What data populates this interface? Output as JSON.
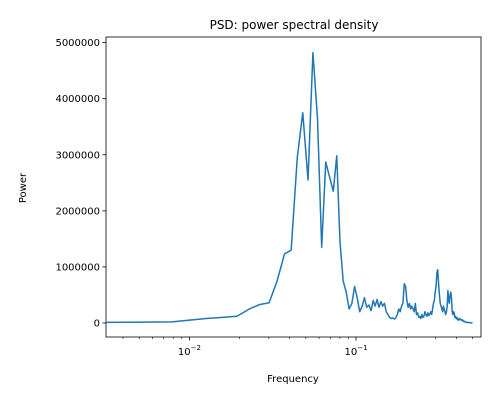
{
  "chart_data": {
    "type": "line",
    "title": "PSD: power spectral density",
    "xlabel": "Frequency",
    "ylabel": "Power",
    "x_scale": "log",
    "xlim": [
      0.00316,
      0.562
    ],
    "ylim": [
      -250000,
      5100000
    ],
    "grid": false,
    "y_ticks": [
      {
        "value": 0,
        "label": "0"
      },
      {
        "value": 1000000,
        "label": "1000000"
      },
      {
        "value": 2000000,
        "label": "2000000"
      },
      {
        "value": 3000000,
        "label": "3000000"
      },
      {
        "value": 4000000,
        "label": "4000000"
      },
      {
        "value": 5000000,
        "label": "5000000"
      }
    ],
    "x_ticks": [
      {
        "value": 0.01,
        "base": "10",
        "exp": "−2"
      },
      {
        "value": 0.1,
        "base": "10",
        "exp": "−1"
      }
    ],
    "x_minor_ticks": [
      0.004,
      0.005,
      0.006,
      0.007,
      0.008,
      0.009,
      0.02,
      0.03,
      0.04,
      0.05,
      0.06,
      0.07,
      0.08,
      0.09,
      0.2,
      0.3,
      0.4,
      0.5
    ],
    "series": [
      {
        "color": "#1f77b4",
        "points": [
          [
            0.00316,
            10000
          ],
          [
            0.00788,
            20000
          ],
          [
            0.0126,
            80000
          ],
          [
            0.0158,
            100000
          ],
          [
            0.0193,
            120000
          ],
          [
            0.0229,
            250000
          ],
          [
            0.0265,
            330000
          ],
          [
            0.0301,
            360000
          ],
          [
            0.0336,
            750000
          ],
          [
            0.0372,
            1230000
          ],
          [
            0.0408,
            1300000
          ],
          [
            0.0444,
            2950000
          ],
          [
            0.0479,
            3750000
          ],
          [
            0.0515,
            2550000
          ],
          [
            0.0551,
            4820000
          ],
          [
            0.0587,
            3650000
          ],
          [
            0.0622,
            1350000
          ],
          [
            0.0658,
            2870000
          ],
          [
            0.0694,
            2600000
          ],
          [
            0.073,
            2350000
          ],
          [
            0.0766,
            2980000
          ],
          [
            0.0801,
            1450000
          ],
          [
            0.0837,
            750000
          ],
          [
            0.0873,
            550000
          ],
          [
            0.0909,
            250000
          ],
          [
            0.0944,
            350000
          ],
          [
            0.098,
            650000
          ],
          [
            0.1016,
            450000
          ],
          [
            0.1052,
            200000
          ],
          [
            0.1088,
            300000
          ],
          [
            0.1123,
            450000
          ],
          [
            0.1159,
            280000
          ],
          [
            0.1195,
            320000
          ],
          [
            0.1231,
            220000
          ],
          [
            0.1267,
            400000
          ],
          [
            0.1302,
            300000
          ],
          [
            0.1338,
            420000
          ],
          [
            0.1374,
            280000
          ],
          [
            0.141,
            380000
          ],
          [
            0.1446,
            300000
          ],
          [
            0.1481,
            350000
          ],
          [
            0.1517,
            200000
          ],
          [
            0.1553,
            150000
          ],
          [
            0.1589,
            100000
          ],
          [
            0.1625,
            80000
          ],
          [
            0.166,
            90000
          ],
          [
            0.1696,
            70000
          ],
          [
            0.1732,
            90000
          ],
          [
            0.1768,
            150000
          ],
          [
            0.1804,
            250000
          ],
          [
            0.1839,
            200000
          ],
          [
            0.1875,
            300000
          ],
          [
            0.1911,
            350000
          ],
          [
            0.1947,
            700000
          ],
          [
            0.1983,
            650000
          ],
          [
            0.2018,
            400000
          ],
          [
            0.2054,
            280000
          ],
          [
            0.209,
            350000
          ],
          [
            0.2126,
            250000
          ],
          [
            0.2162,
            300000
          ],
          [
            0.2197,
            250000
          ],
          [
            0.2233,
            200000
          ],
          [
            0.2269,
            350000
          ],
          [
            0.2305,
            150000
          ],
          [
            0.2341,
            180000
          ],
          [
            0.2376,
            100000
          ],
          [
            0.2412,
            120000
          ],
          [
            0.2448,
            80000
          ],
          [
            0.2484,
            150000
          ],
          [
            0.252,
            100000
          ],
          [
            0.2555,
            120000
          ],
          [
            0.2591,
            200000
          ],
          [
            0.2627,
            150000
          ],
          [
            0.2663,
            120000
          ],
          [
            0.2699,
            180000
          ],
          [
            0.2734,
            130000
          ],
          [
            0.277,
            160000
          ],
          [
            0.2806,
            200000
          ],
          [
            0.2842,
            150000
          ],
          [
            0.2878,
            250000
          ],
          [
            0.2913,
            350000
          ],
          [
            0.2949,
            400000
          ],
          [
            0.2985,
            550000
          ],
          [
            0.3021,
            650000
          ],
          [
            0.3057,
            900000
          ],
          [
            0.3092,
            950000
          ],
          [
            0.3128,
            700000
          ],
          [
            0.3164,
            500000
          ],
          [
            0.32,
            350000
          ],
          [
            0.3236,
            300000
          ],
          [
            0.3271,
            250000
          ],
          [
            0.3307,
            200000
          ],
          [
            0.3343,
            300000
          ],
          [
            0.3379,
            250000
          ],
          [
            0.3415,
            200000
          ],
          [
            0.345,
            150000
          ],
          [
            0.3486,
            200000
          ],
          [
            0.3522,
            300000
          ],
          [
            0.3558,
            580000
          ],
          [
            0.3594,
            400000
          ],
          [
            0.3629,
            350000
          ],
          [
            0.3665,
            500000
          ],
          [
            0.3701,
            550000
          ],
          [
            0.3737,
            450000
          ],
          [
            0.3773,
            200000
          ],
          [
            0.3808,
            150000
          ],
          [
            0.3844,
            200000
          ],
          [
            0.388,
            180000
          ],
          [
            0.3916,
            100000
          ],
          [
            0.3952,
            120000
          ],
          [
            0.3987,
            80000
          ],
          [
            0.4023,
            100000
          ],
          [
            0.4059,
            60000
          ],
          [
            0.4095,
            80000
          ],
          [
            0.4131,
            50000
          ],
          [
            0.4166,
            70000
          ],
          [
            0.4202,
            80000
          ],
          [
            0.4238,
            60000
          ],
          [
            0.4274,
            50000
          ],
          [
            0.431,
            60000
          ],
          [
            0.4345,
            40000
          ],
          [
            0.4381,
            50000
          ],
          [
            0.4417,
            30000
          ],
          [
            0.4453,
            20000
          ],
          [
            0.4489,
            30000
          ],
          [
            0.4524,
            20000
          ],
          [
            0.456,
            15000
          ],
          [
            0.4596,
            10000
          ],
          [
            0.4632,
            12000
          ],
          [
            0.4668,
            8000
          ],
          [
            0.4703,
            10000
          ],
          [
            0.4739,
            8000
          ],
          [
            0.4775,
            6000
          ],
          [
            0.4811,
            5000
          ],
          [
            0.4847,
            6000
          ],
          [
            0.4882,
            5000
          ],
          [
            0.4918,
            4000
          ],
          [
            0.4954,
            3000
          ],
          [
            0.499,
            2000
          ],
          [
            0.5,
            1000
          ]
        ]
      }
    ]
  }
}
